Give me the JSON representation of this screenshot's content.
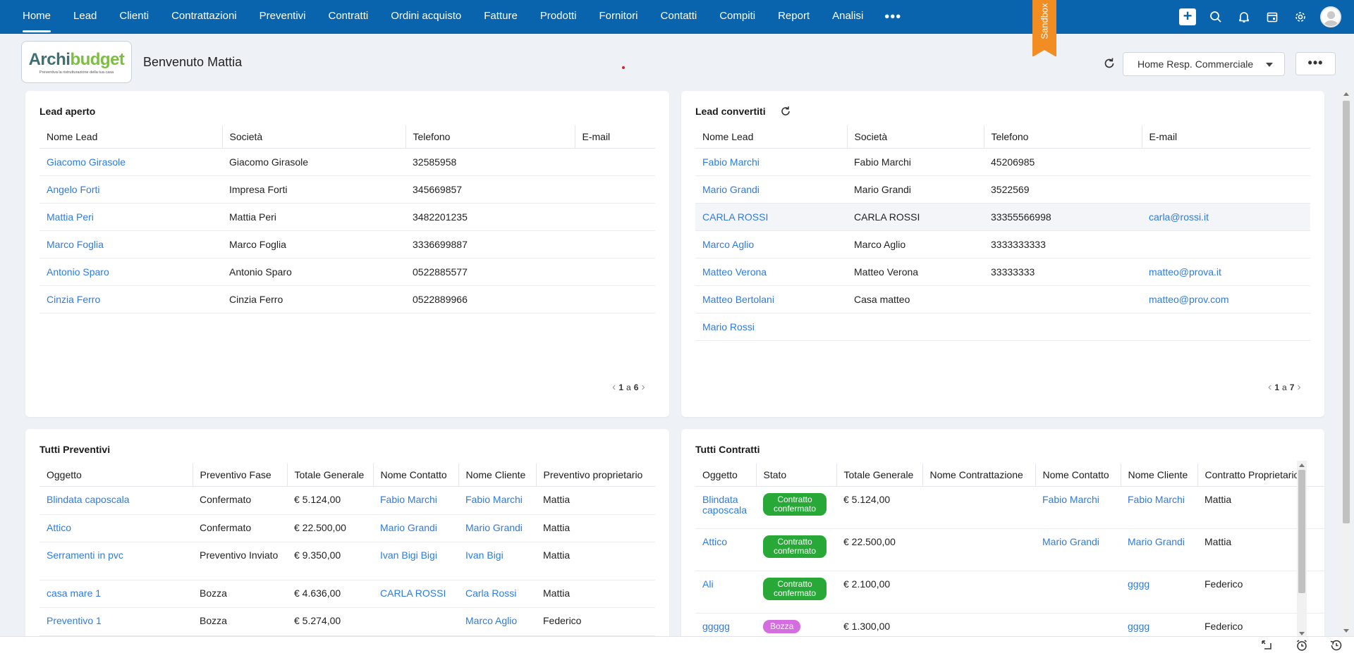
{
  "nav": {
    "tabs": [
      "Home",
      "Lead",
      "Clienti",
      "Contrattazioni",
      "Preventivi",
      "Contratti",
      "Ordini acquisto",
      "Fatture",
      "Prodotti",
      "Fornitori",
      "Contatti",
      "Compiti",
      "Report",
      "Analisi"
    ],
    "active": "Home",
    "more_label": "•••",
    "sandbox_label": "Sandbox",
    "icons": [
      "plus-icon",
      "search-icon",
      "bell-icon",
      "calendar-icon",
      "gear-icon",
      "avatar"
    ]
  },
  "header": {
    "logo_text_a": "Archi",
    "logo_text_b": "budget",
    "logo_tagline": "Preventiva la ristrutturazione della tua casa",
    "welcome": "Benvenuto Mattia",
    "dashboard_select": "Home Resp. Commerciale",
    "more_label": "•••"
  },
  "lead_aperto": {
    "title": "Lead aperto",
    "columns": [
      "Nome Lead",
      "Società",
      "Telefono",
      "E-mail"
    ],
    "rows": [
      [
        "Giacomo Girasole",
        "Giacomo Girasole",
        "32585958",
        ""
      ],
      [
        "Angelo Forti",
        "Impresa Forti",
        "345669857",
        ""
      ],
      [
        "Mattia Peri",
        "Mattia Peri",
        "3482201235",
        ""
      ],
      [
        "Marco Foglia",
        "Marco Foglia",
        "3336699887",
        ""
      ],
      [
        "Antonio Sparo",
        "Antonio Sparo",
        "0522885577",
        ""
      ],
      [
        "Cinzia Ferro",
        "Cinzia Ferro",
        "0522889966",
        ""
      ]
    ],
    "pager": {
      "from": "1",
      "sep": "a",
      "to": "6"
    }
  },
  "lead_convertiti": {
    "title": "Lead convertiti",
    "columns": [
      "Nome Lead",
      "Società",
      "Telefono",
      "E-mail"
    ],
    "rows": [
      [
        "Fabio Marchi",
        "Fabio Marchi",
        "45206985",
        ""
      ],
      [
        "Mario Grandi",
        "Mario Grandi",
        "3522569",
        ""
      ],
      [
        "CARLA ROSSI",
        "CARLA ROSSI",
        "33355566998",
        "carla@rossi.it"
      ],
      [
        "Marco Aglio",
        "Marco Aglio",
        "3333333333",
        ""
      ],
      [
        "Matteo Verona",
        "Matteo Verona",
        "33333333",
        "matteo@prova.it"
      ],
      [
        "Matteo Bertolani",
        "Casa matteo",
        "",
        "matteo@prov.com"
      ],
      [
        "Mario Rossi",
        "",
        "",
        ""
      ]
    ],
    "pager": {
      "from": "1",
      "sep": "a",
      "to": "7"
    }
  },
  "tutti_preventivi": {
    "title": "Tutti Preventivi",
    "columns": [
      "Oggetto",
      "Preventivo Fase",
      "Totale Generale",
      "Nome Contatto",
      "Nome Cliente",
      "Preventivo proprietario"
    ],
    "rows": [
      [
        "Blindata caposcala",
        "Confermato",
        "€ 5.124,00",
        "Fabio Marchi",
        "Fabio Marchi",
        "Mattia"
      ],
      [
        "Attico",
        "Confermato",
        "€ 22.500,00",
        "Mario Grandi",
        "Mario Grandi",
        "Mattia"
      ],
      [
        "Serramenti in pvc",
        "Preventivo Inviato",
        "€ 9.350,00",
        "Ivan Bigi Bigi",
        "Ivan Bigi",
        "Mattia"
      ],
      [
        "casa mare 1",
        "Bozza",
        "€ 4.636,00",
        "CARLA ROSSI",
        "Carla Rossi",
        "Mattia"
      ],
      [
        "Preventivo 1",
        "Bozza",
        "€ 5.274,00",
        "",
        "Marco Aglio",
        "Federico"
      ]
    ]
  },
  "tutti_contratti": {
    "title": "Tutti Contratti",
    "columns": [
      "Oggetto",
      "Stato",
      "Totale Generale",
      "Nome Contrattazione",
      "Nome Contatto",
      "Nome Cliente",
      "Contratto Proprietario"
    ],
    "rows": [
      [
        "Blindata caposcala",
        "Contratto confermato",
        "€ 5.124,00",
        "",
        "Fabio Marchi",
        "Fabio Marchi",
        "Mattia"
      ],
      [
        "Attico",
        "Contratto confermato",
        "€ 22.500,00",
        "",
        "Mario Grandi",
        "Mario Grandi",
        "Mattia"
      ],
      [
        "Ali",
        "Contratto confermato",
        "€ 2.100,00",
        "",
        "",
        "gggg",
        "Federico"
      ],
      [
        "ggggg",
        "Bozza",
        "€ 1.300,00",
        "",
        "",
        "gggg",
        "Federico"
      ]
    ],
    "status_colors": {
      "Contratto confermato": "#27a837",
      "Bozza": "#d46ee0"
    }
  },
  "colors": {
    "nav": "#0a63ad",
    "link": "#2c7be5",
    "sandbox": "#f28d23"
  }
}
